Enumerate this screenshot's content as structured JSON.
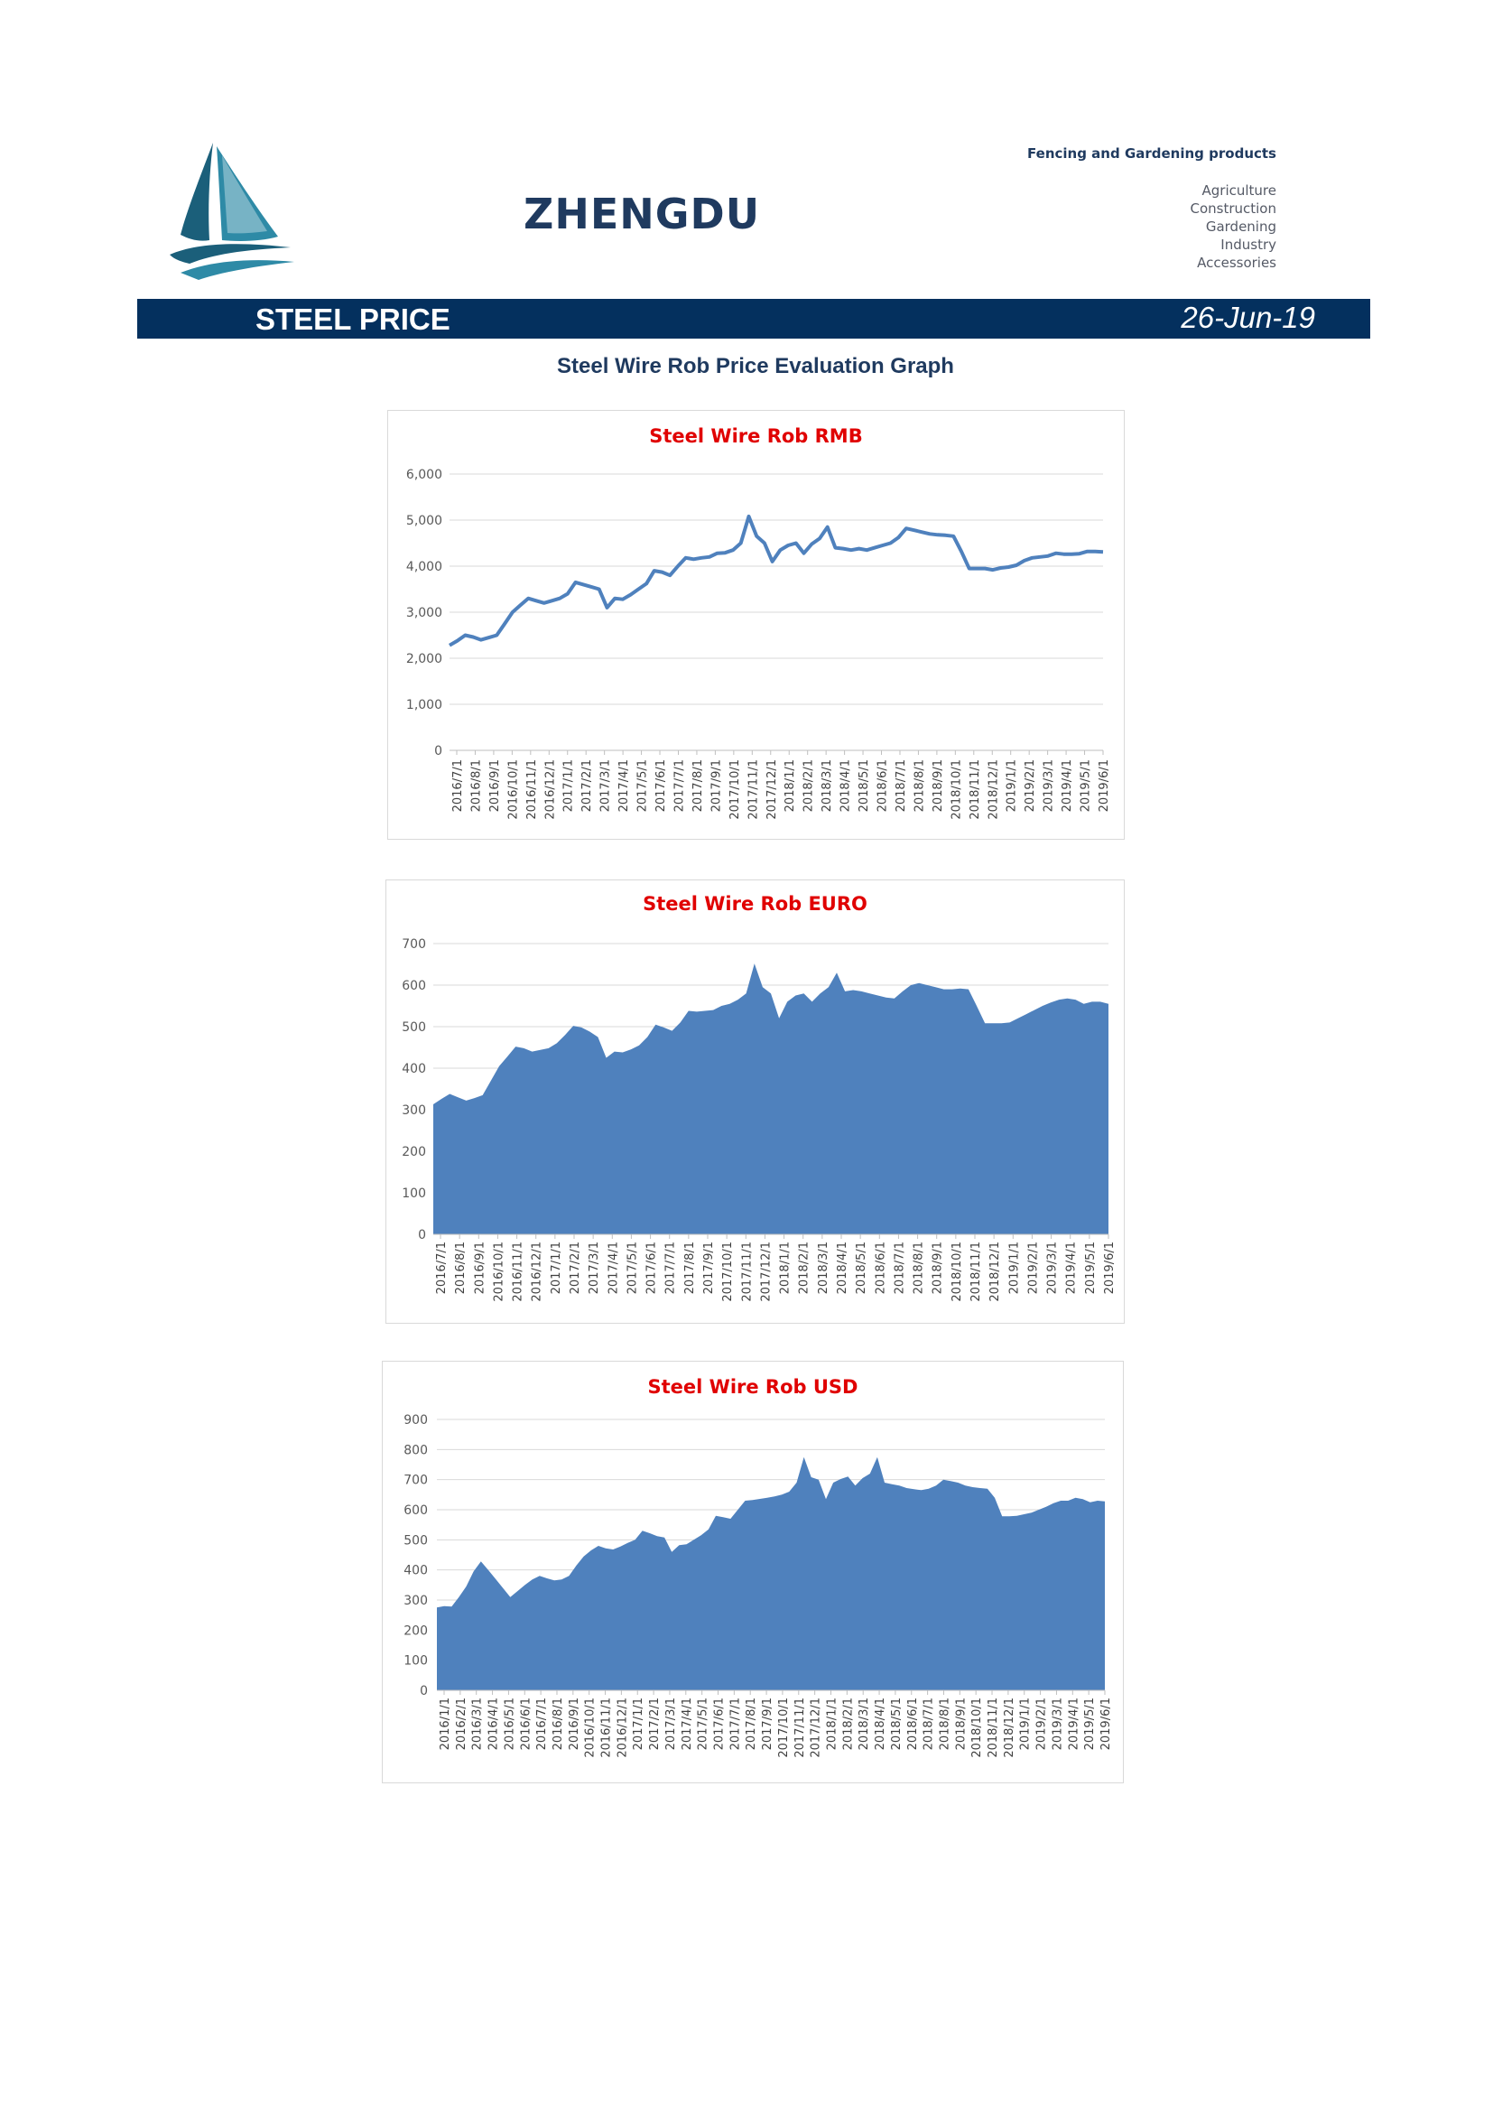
{
  "header": {
    "brand": "ZHENGDU",
    "tagline": "Fencing and Gardening products",
    "categories": [
      "Agriculture",
      "Construction",
      "Gardening",
      "Industry",
      "Accessories"
    ]
  },
  "banner": {
    "title": "STEEL PRICE",
    "date": "26-Jun-19",
    "background": "#04305e"
  },
  "section_title": "Steel Wire Rob Price Evaluation Graph",
  "colors": {
    "series": "#4f81bd",
    "chart_title": "#e00000",
    "heading": "#1f3a5f"
  },
  "chart_data": [
    {
      "type": "line",
      "title": "Steel Wire Rob RMB",
      "ylim": [
        0,
        6000
      ],
      "yticks": [
        0,
        1000,
        2000,
        3000,
        4000,
        5000,
        6000
      ],
      "ytick_labels": [
        "0",
        "1,000",
        "2,000",
        "3,000",
        "4,000",
        "5,000",
        "6,000"
      ],
      "xtick_labels": [
        "2016/7/1",
        "2016/8/1",
        "2016/9/1",
        "2016/10/1",
        "2016/11/1",
        "2016/12/1",
        "2017/1/1",
        "2017/2/1",
        "2017/3/1",
        "2017/4/1",
        "2017/5/1",
        "2017/6/1",
        "2017/7/1",
        "2017/8/1",
        "2017/9/1",
        "2017/10/1",
        "2017/11/1",
        "2017/12/1",
        "2018/1/1",
        "2018/2/1",
        "2018/3/1",
        "2018/4/1",
        "2018/5/1",
        "2018/6/1",
        "2018/7/1",
        "2018/8/1",
        "2018/9/1",
        "2018/10/1",
        "2018/11/1",
        "2018/12/1",
        "2019/1/1",
        "2019/2/1",
        "2019/3/1",
        "2019/4/1",
        "2019/5/1",
        "2019/6/1"
      ],
      "grid": true,
      "values": [
        2280,
        2380,
        2500,
        2460,
        2400,
        2450,
        2500,
        2750,
        3000,
        3150,
        3300,
        3250,
        3200,
        3250,
        3300,
        3400,
        3650,
        3600,
        3550,
        3500,
        3100,
        3300,
        3280,
        3380,
        3500,
        3620,
        3900,
        3870,
        3800,
        4000,
        4180,
        4150,
        4180,
        4200,
        4280,
        4290,
        4350,
        4500,
        5080,
        4650,
        4500,
        4100,
        4350,
        4450,
        4500,
        4280,
        4480,
        4600,
        4850,
        4400,
        4380,
        4350,
        4380,
        4350,
        4400,
        4450,
        4500,
        4620,
        4820,
        4780,
        4740,
        4700,
        4680,
        4670,
        4650,
        4320,
        3950,
        3950,
        3950,
        3920,
        3960,
        3980,
        4020,
        4120,
        4180,
        4200,
        4220,
        4280,
        4260,
        4260,
        4270,
        4320,
        4320,
        4310
      ]
    },
    {
      "type": "area",
      "title": "Steel Wire Rob EURO",
      "ylim": [
        0,
        700
      ],
      "yticks": [
        0,
        100,
        200,
        300,
        400,
        500,
        600,
        700
      ],
      "ytick_labels": [
        "0",
        "100",
        "200",
        "300",
        "400",
        "500",
        "600",
        "700"
      ],
      "xtick_labels": [
        "2016/7/1",
        "2016/8/1",
        "2016/9/1",
        "2016/10/1",
        "2016/11/1",
        "2016/12/1",
        "2017/1/1",
        "2017/2/1",
        "2017/3/1",
        "2017/4/1",
        "2017/5/1",
        "2017/6/1",
        "2017/7/1",
        "2017/8/1",
        "2017/9/1",
        "2017/10/1",
        "2017/11/1",
        "2017/12/1",
        "2018/1/1",
        "2018/2/1",
        "2018/3/1",
        "2018/4/1",
        "2018/5/1",
        "2018/6/1",
        "2018/7/1",
        "2018/8/1",
        "2018/9/1",
        "2018/10/1",
        "2018/11/1",
        "2018/12/1",
        "2019/1/1",
        "2019/2/1",
        "2019/3/1",
        "2019/4/1",
        "2019/5/1",
        "2019/6/1"
      ],
      "grid": true,
      "values": [
        313,
        326,
        338,
        330,
        322,
        328,
        335,
        370,
        405,
        428,
        452,
        448,
        440,
        444,
        448,
        460,
        480,
        502,
        498,
        488,
        475,
        425,
        440,
        438,
        445,
        455,
        475,
        505,
        498,
        490,
        510,
        538,
        536,
        538,
        540,
        550,
        555,
        565,
        580,
        652,
        595,
        580,
        520,
        560,
        575,
        580,
        560,
        580,
        595,
        630,
        585,
        588,
        585,
        580,
        575,
        570,
        568,
        585,
        600,
        605,
        600,
        595,
        590,
        590,
        592,
        590,
        550,
        508,
        508,
        508,
        510,
        520,
        530,
        540,
        550,
        558,
        565,
        568,
        565,
        555,
        560,
        560,
        555
      ]
    },
    {
      "type": "area",
      "title": "Steel Wire Rob USD",
      "ylim": [
        0,
        900
      ],
      "yticks": [
        0,
        100,
        200,
        300,
        400,
        500,
        600,
        700,
        800,
        900
      ],
      "ytick_labels": [
        "0",
        "100",
        "200",
        "300",
        "400",
        "500",
        "600",
        "700",
        "800",
        "900"
      ],
      "xtick_labels": [
        "2016/1/1",
        "2016/2/1",
        "2016/3/1",
        "2016/4/1",
        "2016/5/1",
        "2016/6/1",
        "2016/7/1",
        "2016/8/1",
        "2016/9/1",
        "2016/10/1",
        "2016/11/1",
        "2016/12/1",
        "2017/1/1",
        "2017/2/1",
        "2017/3/1",
        "2017/4/1",
        "2017/5/1",
        "2017/6/1",
        "2017/7/1",
        "2017/8/1",
        "2017/9/1",
        "2017/10/1",
        "2017/11/1",
        "2017/12/1",
        "2018/1/1",
        "2018/2/1",
        "2018/3/1",
        "2018/4/1",
        "2018/5/1",
        "2018/6/1",
        "2018/7/1",
        "2018/8/1",
        "2018/9/1",
        "2018/10/1",
        "2018/11/1",
        "2018/12/1",
        "2019/1/1",
        "2019/2/1",
        "2019/3/1",
        "2019/4/1",
        "2019/5/1",
        "2019/6/1"
      ],
      "grid": true,
      "values": [
        275,
        280,
        278,
        310,
        345,
        395,
        428,
        400,
        370,
        340,
        310,
        330,
        350,
        368,
        380,
        372,
        365,
        368,
        380,
        415,
        445,
        465,
        480,
        472,
        468,
        478,
        490,
        500,
        530,
        522,
        512,
        508,
        460,
        482,
        485,
        500,
        515,
        535,
        580,
        575,
        570,
        600,
        630,
        632,
        636,
        640,
        644,
        650,
        660,
        690,
        775,
        708,
        700,
        635,
        690,
        702,
        710,
        680,
        705,
        720,
        775,
        690,
        685,
        680,
        672,
        668,
        665,
        670,
        680,
        700,
        695,
        690,
        680,
        675,
        672,
        670,
        640,
        578,
        578,
        580,
        585,
        590,
        600,
        610,
        622,
        630,
        630,
        640,
        635,
        625,
        630,
        628
      ]
    }
  ]
}
